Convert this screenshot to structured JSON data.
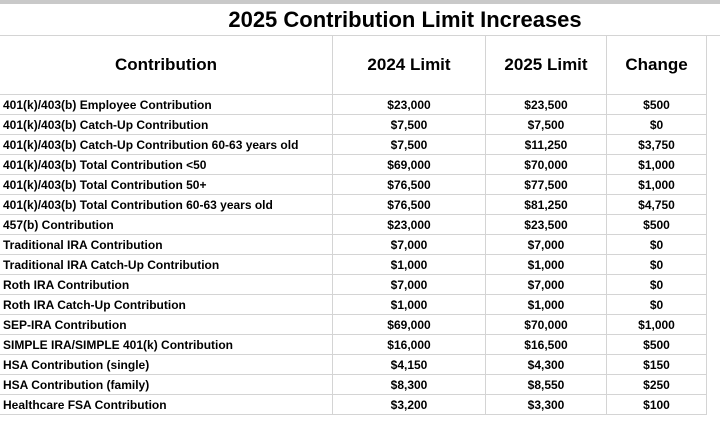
{
  "page": {
    "background_color": "#ffffff",
    "top_strip_color": "#c9c9c9",
    "grid_color": "#d4d4d4",
    "text_color": "#000000"
  },
  "chart_data": {
    "type": "table",
    "title": "2025 Contribution Limit Increases",
    "columns": [
      "Contribution",
      "2024 Limit",
      "2025 Limit",
      "Change"
    ],
    "rows": [
      {
        "label": "401(k)/403(b) Employee Contribution",
        "limit_2024": "$23,000",
        "limit_2025": "$23,500",
        "change": "$500"
      },
      {
        "label": "401(k)/403(b) Catch-Up Contribution",
        "limit_2024": "$7,500",
        "limit_2025": "$7,500",
        "change": "$0"
      },
      {
        "label": "401(k)/403(b) Catch-Up Contribution 60-63 years old",
        "limit_2024": "$7,500",
        "limit_2025": "$11,250",
        "change": "$3,750"
      },
      {
        "label": "401(k)/403(b) Total Contribution <50",
        "limit_2024": "$69,000",
        "limit_2025": "$70,000",
        "change": "$1,000"
      },
      {
        "label": "401(k)/403(b) Total Contribution 50+",
        "limit_2024": "$76,500",
        "limit_2025": "$77,500",
        "change": "$1,000"
      },
      {
        "label": "401(k)/403(b) Total Contribution 60-63 years old",
        "limit_2024": "$76,500",
        "limit_2025": "$81,250",
        "change": "$4,750"
      },
      {
        "label": "457(b) Contribution",
        "limit_2024": "$23,000",
        "limit_2025": "$23,500",
        "change": "$500"
      },
      {
        "label": "Traditional IRA Contribution",
        "limit_2024": "$7,000",
        "limit_2025": "$7,000",
        "change": "$0"
      },
      {
        "label": "Traditional IRA Catch-Up Contribution",
        "limit_2024": "$1,000",
        "limit_2025": "$1,000",
        "change": "$0"
      },
      {
        "label": "Roth IRA Contribution",
        "limit_2024": "$7,000",
        "limit_2025": "$7,000",
        "change": "$0"
      },
      {
        "label": "Roth IRA Catch-Up Contribution",
        "limit_2024": "$1,000",
        "limit_2025": "$1,000",
        "change": "$0"
      },
      {
        "label": "SEP-IRA Contribution",
        "limit_2024": "$69,000",
        "limit_2025": "$70,000",
        "change": "$1,000"
      },
      {
        "label": "SIMPLE IRA/SIMPLE 401(k) Contribution",
        "limit_2024": "$16,000",
        "limit_2025": "$16,500",
        "change": "$500"
      },
      {
        "label": "HSA Contribution (single)",
        "limit_2024": "$4,150",
        "limit_2025": "$4,300",
        "change": "$150"
      },
      {
        "label": "HSA Contribution (family)",
        "limit_2024": "$8,300",
        "limit_2025": "$8,550",
        "change": "$250"
      },
      {
        "label": "Healthcare FSA Contribution",
        "limit_2024": "$3,200",
        "limit_2025": "$3,300",
        "change": "$100"
      }
    ]
  }
}
